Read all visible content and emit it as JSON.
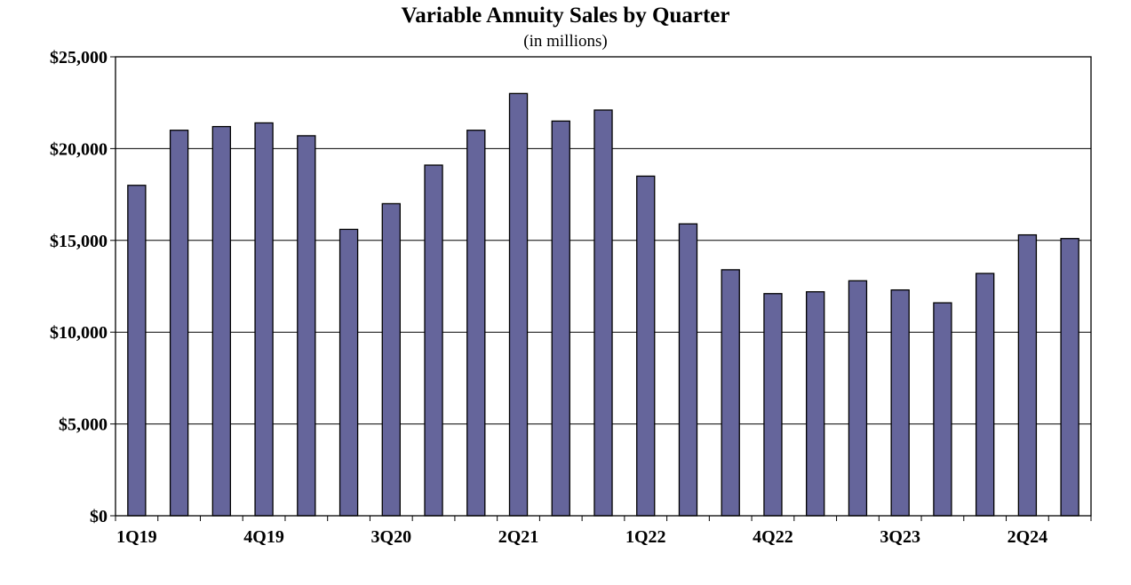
{
  "chart_data": {
    "type": "bar",
    "title": "Variable Annuity Sales by Quarter",
    "subtitle": "(in millions)",
    "xlabel": "",
    "ylabel": "",
    "ylim": [
      0,
      25000
    ],
    "yticks": [
      0,
      5000,
      10000,
      15000,
      20000,
      25000
    ],
    "ytick_labels": [
      "$0",
      "$5,000",
      "$10,000",
      "$15,000",
      "$20,000",
      "$25,000"
    ],
    "categories": [
      "1Q19",
      "2Q19",
      "3Q19",
      "4Q19",
      "1Q20",
      "2Q20",
      "3Q20",
      "4Q20",
      "1Q21",
      "2Q21",
      "3Q21",
      "4Q21",
      "1Q22",
      "2Q22",
      "3Q22",
      "4Q22",
      "1Q23",
      "2Q23",
      "3Q23",
      "4Q23",
      "1Q24",
      "2Q24",
      "3Q24"
    ],
    "visible_xtick_labels": [
      "1Q19",
      "4Q19",
      "3Q20",
      "2Q21",
      "1Q22",
      "4Q22",
      "3Q23",
      "2Q24"
    ],
    "values": [
      18000,
      21000,
      21200,
      21400,
      20700,
      15600,
      17000,
      19100,
      21000,
      23000,
      21500,
      22100,
      18500,
      15900,
      13400,
      12100,
      12200,
      12800,
      12300,
      11600,
      13200,
      15300,
      15100
    ],
    "grid": true,
    "legend": "none",
    "colors": {
      "bar": "#65659b",
      "bar_edge": "#000000",
      "grid": "#000000"
    }
  }
}
